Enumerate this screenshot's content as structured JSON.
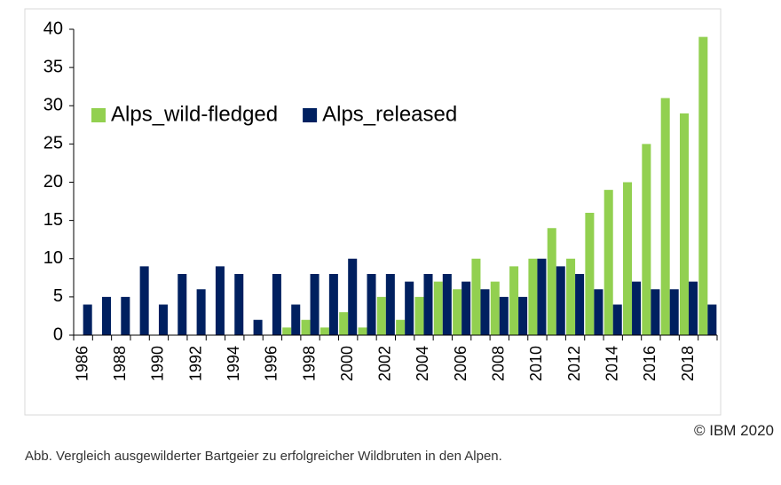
{
  "chart_data": {
    "type": "bar",
    "categories": [
      "1986",
      null,
      "1988",
      null,
      "1990",
      null,
      "1992",
      null,
      "1994",
      null,
      "1996",
      null,
      "1998",
      null,
      "2000",
      null,
      "2002",
      null,
      "2004",
      null,
      "2006",
      null,
      "2008",
      null,
      "2010",
      null,
      "2012",
      null,
      "2014",
      null,
      "2016",
      null,
      "2018",
      null
    ],
    "series": [
      {
        "name": "Alps_wild-fledged",
        "color": "#92d050",
        "values": [
          0,
          0,
          0,
          0,
          0,
          0,
          0,
          0,
          0,
          0,
          0,
          1,
          2,
          1,
          3,
          1,
          5,
          2,
          5,
          7,
          6,
          10,
          7,
          9,
          10,
          14,
          10,
          16,
          19,
          20,
          25,
          31,
          29,
          39
        ]
      },
      {
        "name": "Alps_released",
        "color": "#002060",
        "values": [
          4,
          5,
          5,
          9,
          4,
          8,
          6,
          9,
          8,
          2,
          8,
          4,
          8,
          8,
          10,
          8,
          8,
          7,
          8,
          8,
          7,
          6,
          5,
          5,
          10,
          9,
          8,
          6,
          4,
          7,
          6,
          6,
          7,
          4
        ]
      }
    ],
    "ylim": [
      0,
      40
    ],
    "yticks": [
      0,
      5,
      10,
      15,
      20,
      25,
      30,
      35,
      40
    ],
    "grid": false,
    "legend": "top-left"
  },
  "credit": "© IBM 2020",
  "caption": "Abb. Vergleich ausgewilderter Bartgeier zu erfolgreicher Wildbruten in den Alpen."
}
